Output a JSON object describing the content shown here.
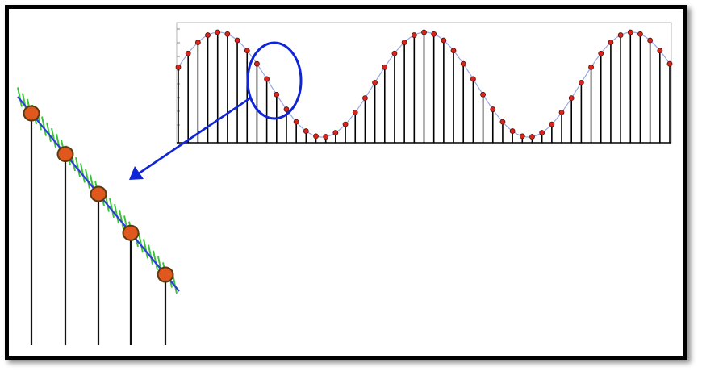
{
  "diagram": {
    "kind": "sampling-illustration",
    "sampled_signal": {
      "waveform": "sine",
      "periods_shown": 2.5,
      "samples_per_period": 21,
      "sample_count": 51,
      "sample_dot_color": "#d8261b",
      "stem_color": "#000000",
      "curve_color": "#9aa6e6"
    },
    "highlight": {
      "shape": "ellipse",
      "color": "#1024d8",
      "covers_sample_indices": [
        8,
        9,
        10,
        11
      ]
    },
    "arrow": {
      "color": "#1024d8",
      "direction": "down-left"
    },
    "zoomed_detail": {
      "sample_count": 5,
      "dot_fill": "#e0581e",
      "dot_outline": "#5a3a10",
      "curve_color": "#2b3fd6",
      "noise_color": "#3cc23c",
      "noise_band": true
    },
    "frame": {
      "border_color": "#000000",
      "shadow": true
    }
  }
}
